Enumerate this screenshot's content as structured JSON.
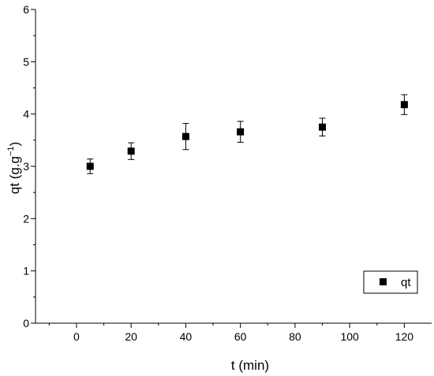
{
  "chart_data": {
    "type": "scatter",
    "xlabel": "t (min)",
    "ylabel_main": "qt (g.g",
    "ylabel_sup": "−1",
    "ylabel_close": ")",
    "xlim": [
      -15,
      130
    ],
    "ylim": [
      0,
      6
    ],
    "x_ticks": [
      0,
      20,
      40,
      60,
      80,
      100,
      120
    ],
    "y_ticks": [
      0,
      1,
      2,
      3,
      4,
      5,
      6
    ],
    "grid": false,
    "legend_position": "bottom-right",
    "series": [
      {
        "name": "qt",
        "marker": "square",
        "color": "#000000",
        "points": [
          {
            "x": 5,
            "y": 3.0,
            "err": 0.14
          },
          {
            "x": 20,
            "y": 3.29,
            "err": 0.16
          },
          {
            "x": 40,
            "y": 3.57,
            "err": 0.25
          },
          {
            "x": 60,
            "y": 3.66,
            "err": 0.2
          },
          {
            "x": 90,
            "y": 3.75,
            "err": 0.17
          },
          {
            "x": 120,
            "y": 4.18,
            "err": 0.19
          }
        ]
      }
    ]
  }
}
